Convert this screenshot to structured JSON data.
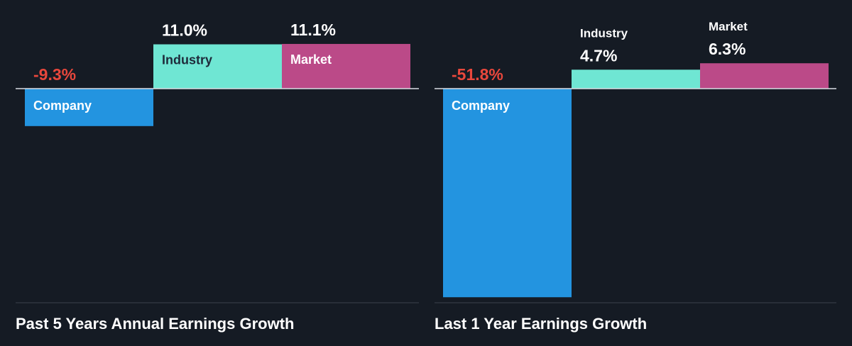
{
  "colors": {
    "background": "#151b24",
    "axis": "#d9dde3",
    "footer_line": "#3a414b",
    "company": "#2394e0",
    "industry": "#6fe6d3",
    "market": "#bb4a88",
    "negative_label": "#e8473c",
    "value_label": "#ffffff",
    "inner_label_dark": "#1e2a3a",
    "inner_label_light": "#ffffff"
  },
  "chart_data": [
    {
      "type": "bar",
      "title": "Past 5 Years Annual Earnings Growth",
      "categories": [
        "Company",
        "Industry",
        "Market"
      ],
      "values": [
        -9.3,
        11.0,
        11.1
      ],
      "value_labels": [
        "-9.3%",
        "11.0%",
        "11.1%"
      ],
      "unit": "%",
      "ylim": [
        -51.8,
        11.1
      ],
      "grid": false
    },
    {
      "type": "bar",
      "title": "Last 1 Year Earnings Growth",
      "categories": [
        "Company",
        "Industry",
        "Market"
      ],
      "values": [
        -51.8,
        4.7,
        6.3
      ],
      "value_labels": [
        "-51.8%",
        "4.7%",
        "6.3%"
      ],
      "unit": "%",
      "ylim": [
        -51.8,
        6.3
      ],
      "grid": false
    }
  ]
}
